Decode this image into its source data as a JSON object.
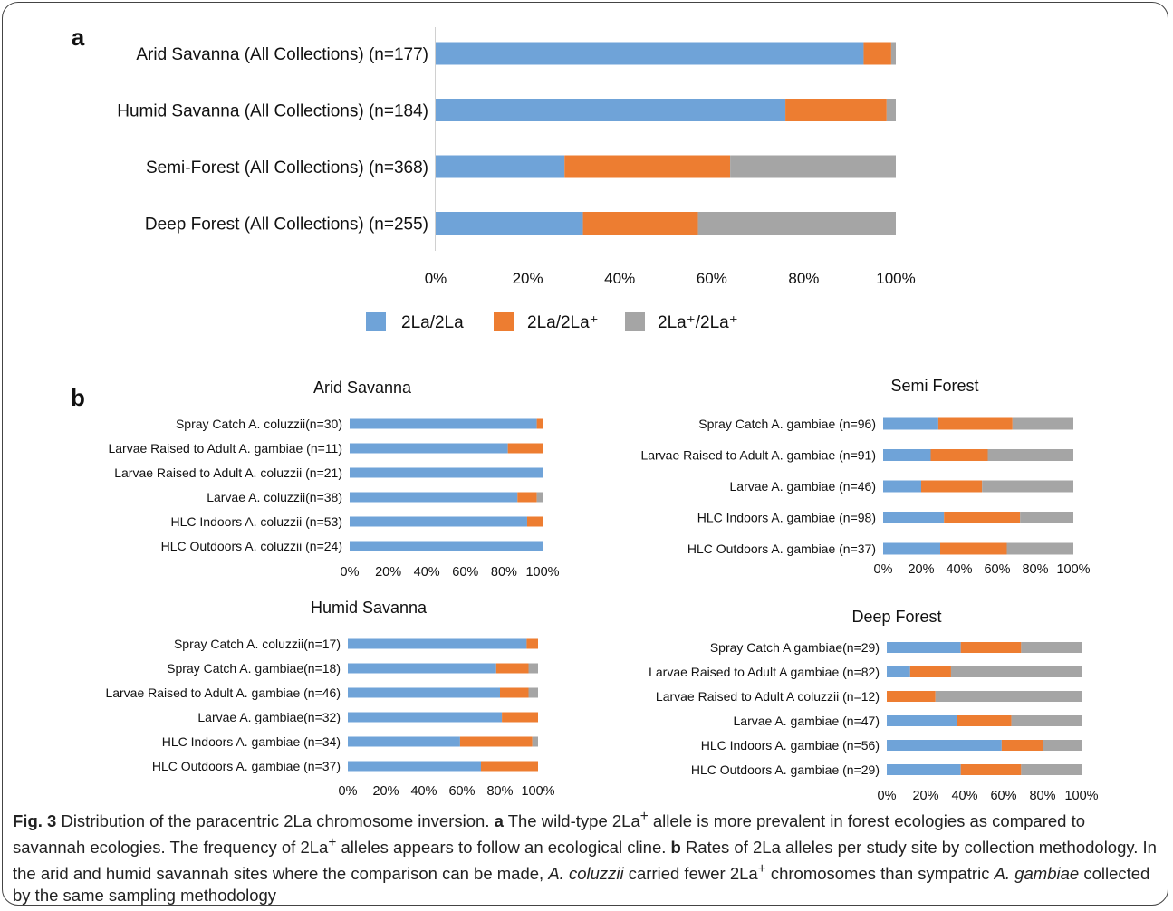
{
  "colors": {
    "homo_inv": "#6FA3D8",
    "hetero": "#ED7D31",
    "homo_std": "#A5A5A5"
  },
  "legend": [
    {
      "label": "2La/2La",
      "color": "#6FA3D8"
    },
    {
      "label": "2La/2La⁺",
      "color": "#ED7D31"
    },
    {
      "label": "2La⁺/2La⁺",
      "color": "#A5A5A5"
    }
  ],
  "chart_data": [
    {
      "id": "a",
      "panel_letter": "a",
      "type": "bar",
      "orientation": "horizontal",
      "stacked": "percent",
      "title": "",
      "xlim": [
        0,
        100
      ],
      "ticks": [
        "0%",
        "20%",
        "40%",
        "60%",
        "80%",
        "100%"
      ],
      "categories": [
        "Arid Savanna  (All Collections) (n=177)",
        "Humid Savanna (All Collections) (n=184)",
        "Semi-Forest (All Collections) (n=368)",
        "Deep Forest (All Collections) (n=255)"
      ],
      "series": [
        {
          "name": "2La/2La",
          "values": [
            93,
            76,
            28,
            32
          ]
        },
        {
          "name": "2La/2La⁺",
          "values": [
            6,
            22,
            36,
            25
          ]
        },
        {
          "name": "2La⁺/2La⁺",
          "values": [
            1,
            2,
            36,
            43
          ]
        }
      ],
      "legend_position": "bottom"
    },
    {
      "id": "b1",
      "panel_letter": "b",
      "type": "bar",
      "orientation": "horizontal",
      "stacked": "percent",
      "title": "Arid Savanna",
      "xlim": [
        0,
        100
      ],
      "ticks": [
        "0%",
        "20%",
        "40%",
        "60%",
        "80%",
        "100%"
      ],
      "categories": [
        "Spray Catch A. coluzzii(n=30)",
        "Larvae Raised to Adult A. gambiae (n=11)",
        "Larvae Raised to Adult A. coluzzii (n=21)",
        "Larvae A. coluzzii(n=38)",
        "HLC Indoors A. coluzzii (n=53)",
        "HLC Outdoors A. coluzzii (n=24)"
      ],
      "series": [
        {
          "name": "2La/2La",
          "values": [
            97,
            82,
            100,
            87,
            92,
            100
          ]
        },
        {
          "name": "2La/2La⁺",
          "values": [
            3,
            18,
            0,
            10,
            8,
            0
          ]
        },
        {
          "name": "2La⁺/2La⁺",
          "values": [
            0,
            0,
            0,
            3,
            0,
            0
          ]
        }
      ]
    },
    {
      "id": "b2",
      "type": "bar",
      "orientation": "horizontal",
      "stacked": "percent",
      "title": "Semi Forest",
      "xlim": [
        0,
        100
      ],
      "ticks": [
        "0%",
        "20%",
        "40%",
        "60%",
        "80%",
        "100%"
      ],
      "categories": [
        "Spray Catch A. gambiae  (n=96)",
        "Larvae Raised to Adult A. gambiae  (n=91)",
        "Larvae A. gambiae (n=46)",
        "HLC Indoors A. gambiae (n=98)",
        "HLC Outdoors A. gambiae (n=37)"
      ],
      "series": [
        {
          "name": "2La/2La",
          "values": [
            29,
            25,
            20,
            32,
            30
          ]
        },
        {
          "name": "2La/2La⁺",
          "values": [
            39,
            30,
            32,
            40,
            35
          ]
        },
        {
          "name": "2La⁺/2La⁺",
          "values": [
            32,
            45,
            48,
            28,
            35
          ]
        }
      ]
    },
    {
      "id": "b3",
      "type": "bar",
      "orientation": "horizontal",
      "stacked": "percent",
      "title": "Humid Savanna",
      "xlim": [
        0,
        100
      ],
      "ticks": [
        "0%",
        "20%",
        "40%",
        "60%",
        "80%",
        "100%"
      ],
      "categories": [
        "Spray Catch A. coluzzii(n=17)",
        "Spray Catch A. gambiae(n=18)",
        "Larvae Raised to Adult A.  gambiae (n=46)",
        "Larvae A. gambiae(n=32)",
        "HLC Indoors A. gambiae (n=34)",
        "HLC Outdoors A. gambiae (n=37)"
      ],
      "series": [
        {
          "name": "2La/2La",
          "values": [
            94,
            78,
            80,
            81,
            59,
            70
          ]
        },
        {
          "name": "2La/2La⁺",
          "values": [
            6,
            17,
            15,
            19,
            38,
            30
          ]
        },
        {
          "name": "2La⁺/2La⁺",
          "values": [
            0,
            5,
            5,
            0,
            3,
            0
          ]
        }
      ]
    },
    {
      "id": "b4",
      "type": "bar",
      "orientation": "horizontal",
      "stacked": "percent",
      "title": "Deep Forest",
      "xlim": [
        0,
        100
      ],
      "ticks": [
        "0%",
        "20%",
        "40%",
        "60%",
        "80%",
        "100%"
      ],
      "categories": [
        "Spray Catch A gambiae(n=29)",
        "Larvae Raised to Adult A gambiae (n=82)",
        "Larvae Raised to Adult A coluzzii (n=12)",
        "Larvae  A. gambiae (n=47)",
        "HLC Indoors A. gambiae (n=56)",
        "HLC Outdoors A. gambiae (n=29)"
      ],
      "series": [
        {
          "name": "2La/2La",
          "values": [
            38,
            12,
            0,
            36,
            59,
            38
          ]
        },
        {
          "name": "2La/2La⁺",
          "values": [
            31,
            21,
            25,
            28,
            21,
            31
          ]
        },
        {
          "name": "2La⁺/2La⁺",
          "values": [
            31,
            67,
            75,
            36,
            20,
            31
          ]
        }
      ]
    }
  ],
  "caption": {
    "label": "Fig. 3",
    "text1": "  Distribution of the paracentric 2La chromosome inversion. ",
    "a_label": "a",
    "text2a": " The wild-type 2La",
    "sup_plus_1": "+",
    "text2b": " allele is more prevalent in forest ecologies as compared to savannah ecologies. The frequency of 2La",
    "sup_plus_2": "+",
    "text2c": " alleles appears to follow an ecological cline. ",
    "b_label": "b",
    "text3a": " Rates of 2La alleles per study site by collection methodology. In the arid and humid savannah sites where the comparison can be made, ",
    "species1": "A. coluzzii",
    "text3b": " carried fewer 2La",
    "sup_plus_3": "+",
    "text3c": " chromosomes than sympatric ",
    "species2": "A. gambiae",
    "text3d": " collected by the same sampling methodology"
  }
}
